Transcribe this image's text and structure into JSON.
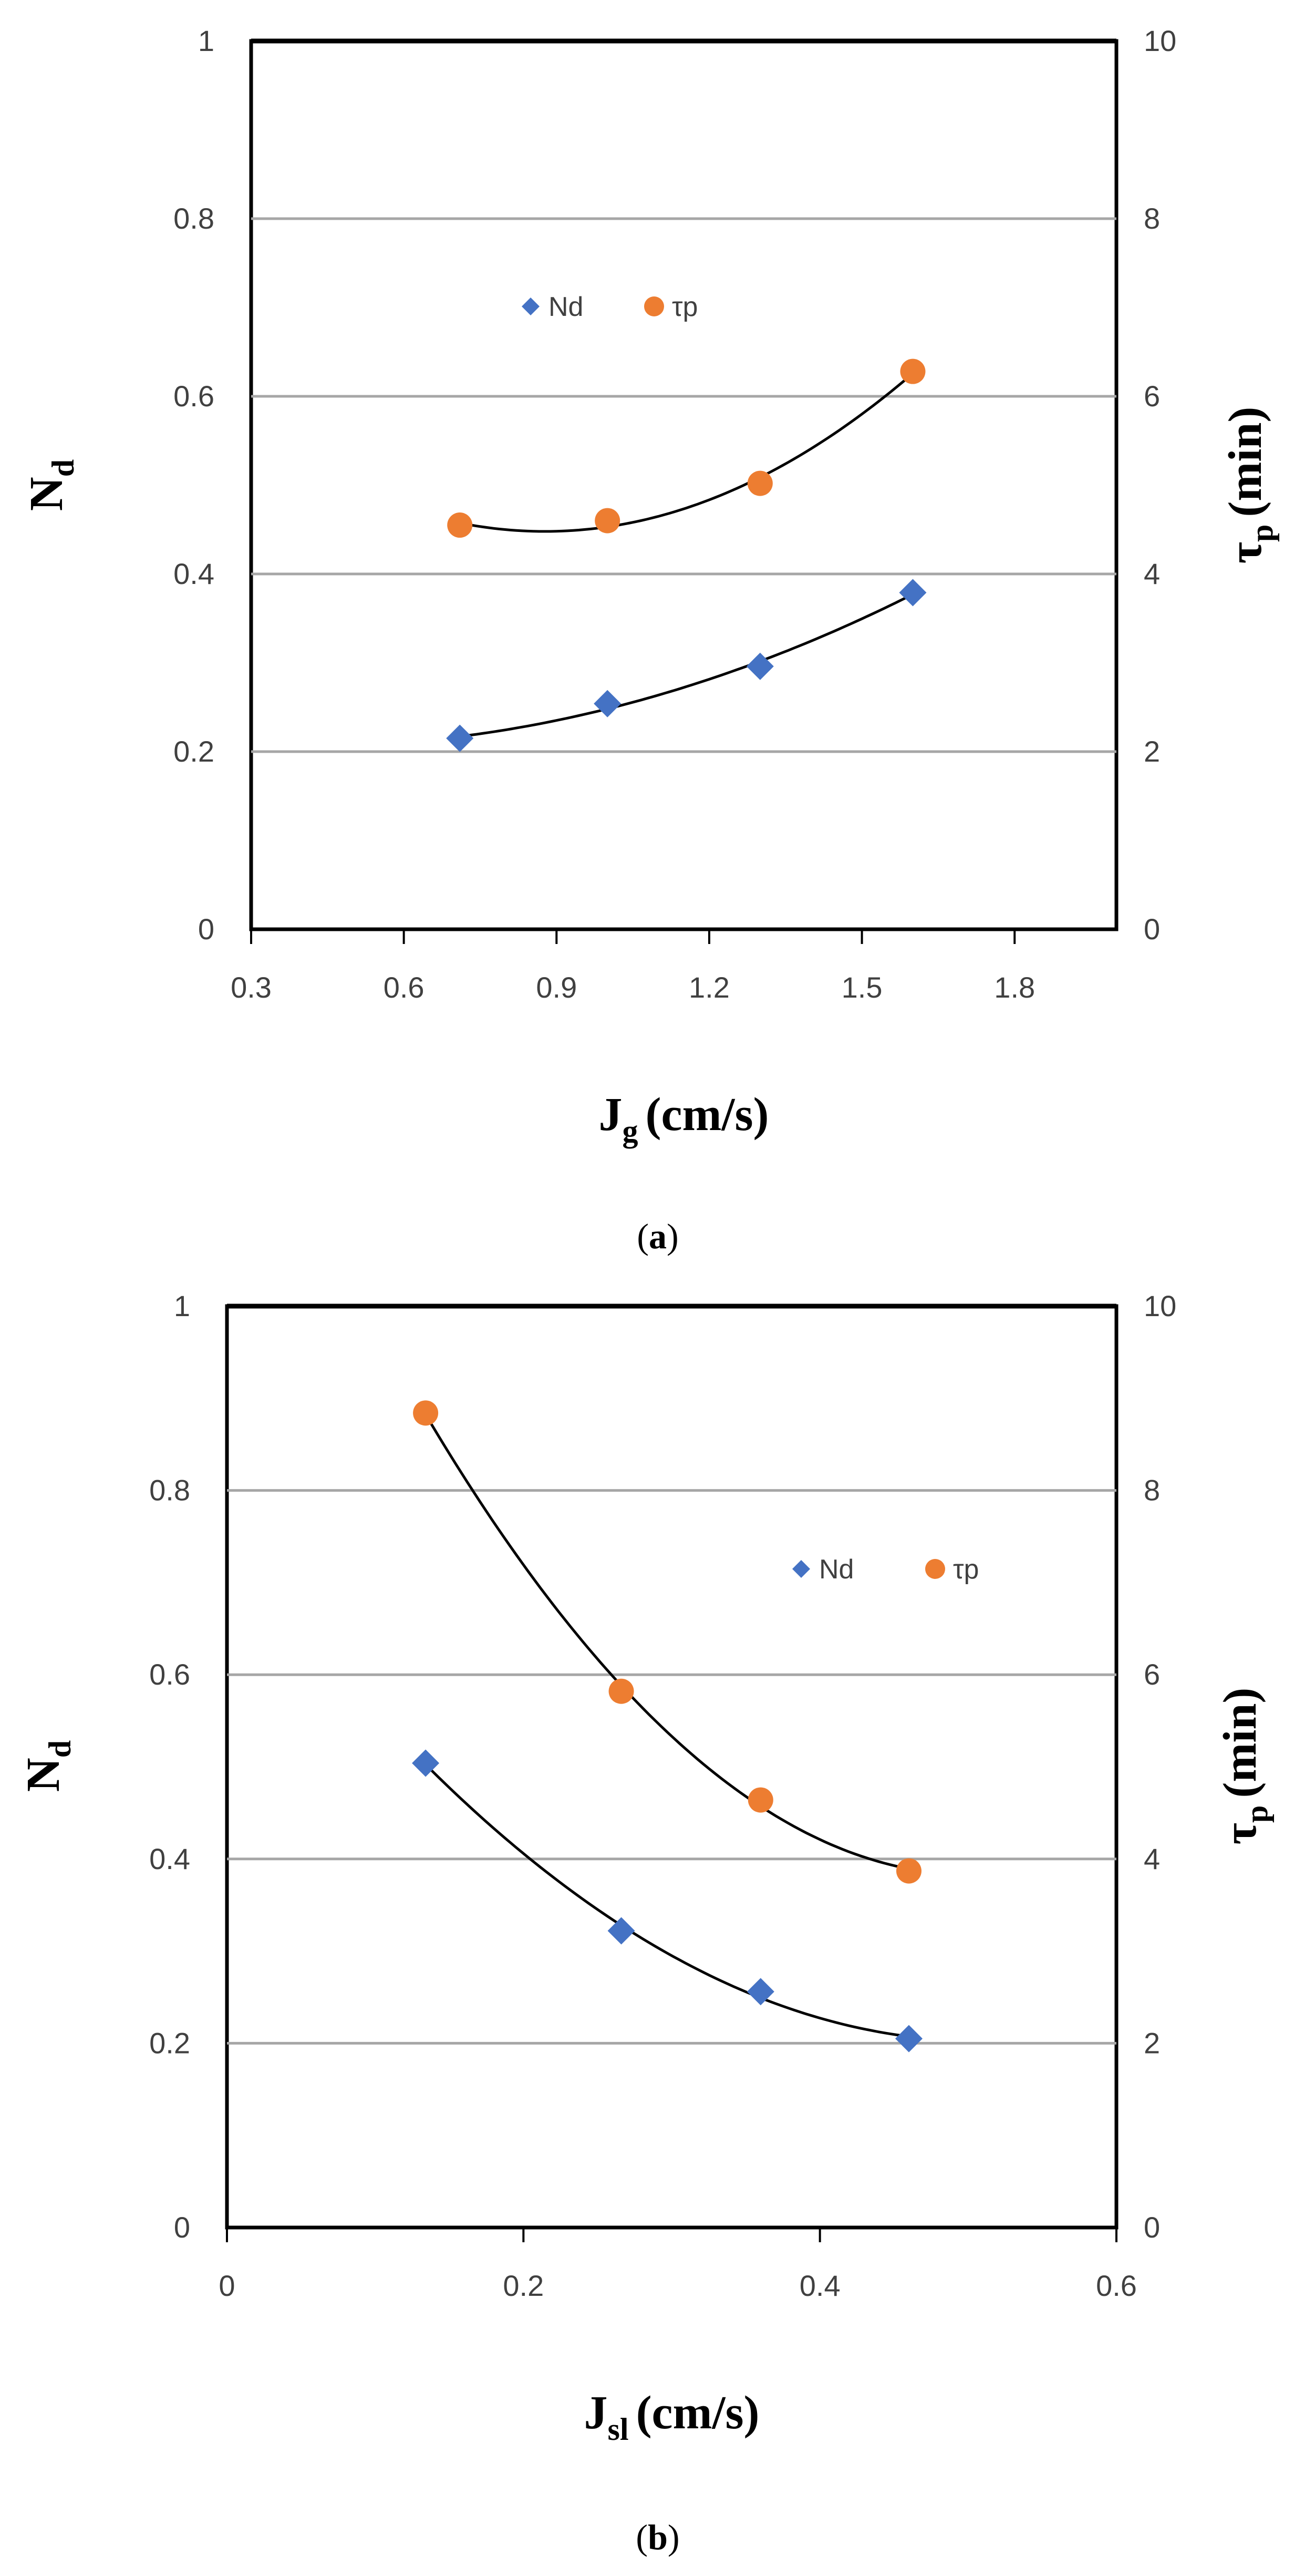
{
  "chart_data": [
    {
      "type": "scatter",
      "panel": "a",
      "caption_letter": "a",
      "xlabel": {
        "main": "J",
        "sub": "g",
        "rest": "(cm/s)"
      },
      "ylabel_left": {
        "main": "N",
        "sub": "d",
        "rest": ""
      },
      "ylabel_right": {
        "main": "τ",
        "sub": "p",
        "rest": "(min)"
      },
      "xlim": [
        0.3,
        2.0
      ],
      "xticks": [
        0.3,
        0.6,
        0.9,
        1.2,
        1.5,
        1.8
      ],
      "xtick_labels": [
        "0.3",
        "0.6",
        "0.9",
        "1.2",
        "1.5",
        "1.8"
      ],
      "ylim_left": [
        0,
        1
      ],
      "yticks_left": [
        0,
        0.2,
        0.4,
        0.6,
        0.8,
        1
      ],
      "ytick_labels_left": [
        "0",
        "0.2",
        "0.4",
        "0.6",
        "0.8",
        "1"
      ],
      "ylim_right": [
        0,
        10
      ],
      "yticks_right": [
        0,
        2,
        4,
        6,
        8,
        10
      ],
      "ytick_labels_right": [
        "0",
        "2",
        "4",
        "6",
        "8",
        "10"
      ],
      "grid": "horizontal",
      "legend_position": "upper-left",
      "series": [
        {
          "name": "Nd",
          "axis": "left",
          "marker": "diamond",
          "color": "#4472c4",
          "x": [
            0.71,
            1.0,
            1.3,
            1.6
          ],
          "y": [
            0.215,
            0.254,
            0.296,
            0.379
          ],
          "trend": "poly2"
        },
        {
          "name": "τp",
          "axis": "right",
          "marker": "circle",
          "color": "#ed7d31",
          "x": [
            0.71,
            1.0,
            1.3,
            1.6
          ],
          "y": [
            4.55,
            4.6,
            5.02,
            6.28
          ],
          "trend": "poly2"
        }
      ]
    },
    {
      "type": "scatter",
      "panel": "b",
      "caption_letter": "b",
      "xlabel": {
        "main": "J",
        "sub": "sl",
        "rest": "(cm/s)"
      },
      "ylabel_left": {
        "main": "N",
        "sub": "d",
        "rest": ""
      },
      "ylabel_right": {
        "main": "τ",
        "sub": "p",
        "rest": "(min)"
      },
      "xlim": [
        0,
        0.6
      ],
      "xticks": [
        0,
        0.2,
        0.4,
        0.6
      ],
      "xtick_labels": [
        "0",
        "0.2",
        "0.4",
        "0.6"
      ],
      "ylim_left": [
        0,
        1
      ],
      "yticks_left": [
        0,
        0.2,
        0.4,
        0.6,
        0.8,
        1
      ],
      "ytick_labels_left": [
        "0",
        "0.2",
        "0.4",
        "0.6",
        "0.8",
        "1"
      ],
      "ylim_right": [
        0,
        10
      ],
      "yticks_right": [
        0,
        2,
        4,
        6,
        8,
        10
      ],
      "ytick_labels_right": [
        "0",
        "2",
        "4",
        "6",
        "8",
        "10"
      ],
      "grid": "horizontal",
      "legend_position": "upper-right",
      "series": [
        {
          "name": "Nd",
          "axis": "left",
          "marker": "diamond",
          "color": "#4472c4",
          "x": [
            0.134,
            0.266,
            0.36,
            0.46
          ],
          "y": [
            0.504,
            0.322,
            0.256,
            0.205
          ],
          "trend": "poly2"
        },
        {
          "name": "τp",
          "axis": "right",
          "marker": "circle",
          "color": "#ed7d31",
          "x": [
            0.134,
            0.266,
            0.36,
            0.46
          ],
          "y": [
            8.84,
            5.82,
            4.64,
            3.87
          ],
          "trend": "poly2"
        }
      ]
    }
  ]
}
